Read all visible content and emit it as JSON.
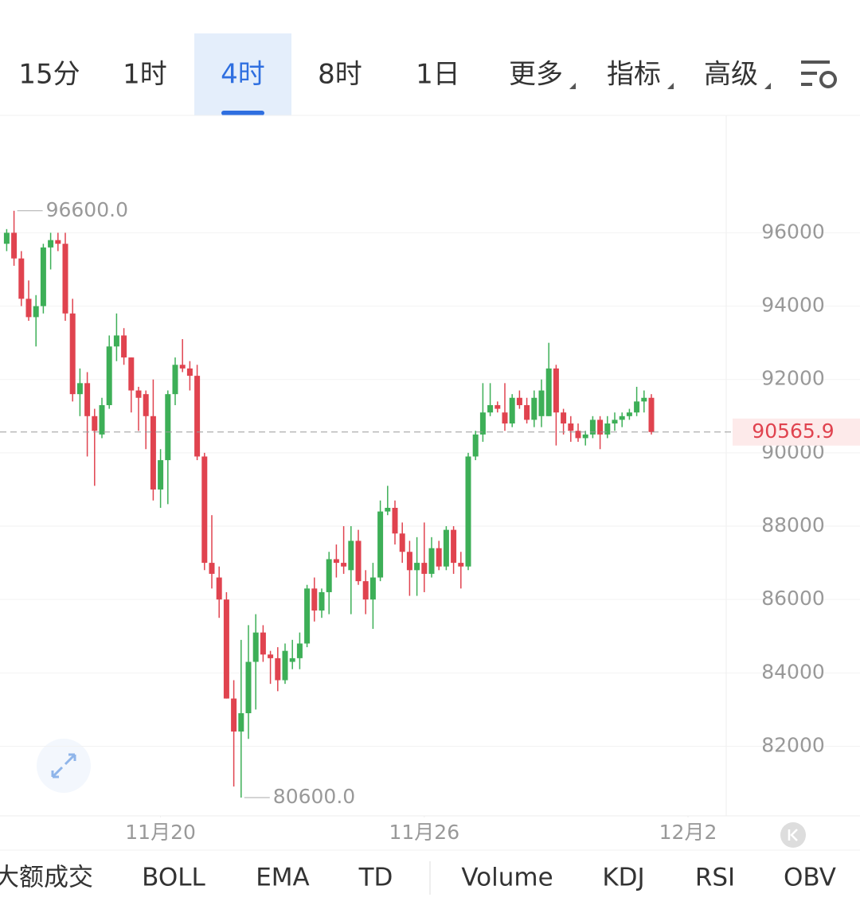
{
  "tabs": [
    {
      "label": "15分"
    },
    {
      "label": "1时"
    },
    {
      "label": "4时",
      "active": true
    },
    {
      "label": "8时"
    },
    {
      "label": "1日"
    },
    {
      "label": "更多",
      "menu": true
    },
    {
      "label": "指标",
      "menu": true
    },
    {
      "label": "高级",
      "menu": true
    }
  ],
  "indicators": [
    "大额成交",
    "BOLL",
    "EMA",
    "TD",
    "Volume",
    "KDJ",
    "RSI",
    "OBV"
  ],
  "chart_data": {
    "type": "candlestick",
    "open": [
      95700,
      96000,
      95300,
      94200,
      93700,
      94000,
      95600,
      95800,
      95700,
      93800,
      91600,
      91900,
      91000,
      90500,
      91300,
      92900,
      93200,
      92600,
      91700,
      91600,
      91000,
      89000,
      89800,
      91600,
      92400,
      92300,
      92100,
      89900,
      87000,
      86600,
      86000,
      83300,
      82400,
      82900,
      84300,
      85100,
      84500,
      84400,
      83800,
      84300,
      84400,
      84800,
      86300,
      85700,
      86200,
      87100,
      87000,
      86800,
      87600,
      86500,
      86000,
      86600,
      88400,
      88500,
      87800,
      87300,
      86800,
      87000,
      86700,
      87400,
      86900,
      87900,
      87000,
      86900,
      89900,
      90500,
      91100,
      91300,
      91100,
      90800,
      91500,
      91300,
      90900,
      91000,
      91000,
      92300,
      91100,
      90800,
      90600,
      90400,
      90500,
      90900,
      90500,
      90800,
      90900,
      91000,
      91100,
      91400,
      91500
    ],
    "high": [
      96100,
      96600,
      95500,
      94700,
      94300,
      95700,
      96000,
      96000,
      96000,
      94200,
      92300,
      92200,
      91200,
      91500,
      93200,
      93800,
      93400,
      92600,
      91800,
      91700,
      92000,
      90100,
      91700,
      92600,
      93100,
      92500,
      92400,
      90000,
      88300,
      86900,
      86200,
      83800,
      84900,
      85300,
      85600,
      85300,
      84600,
      84700,
      84800,
      84900,
      85100,
      86400,
      86600,
      86300,
      87300,
      87500,
      88000,
      88000,
      87900,
      86800,
      87000,
      88700,
      89100,
      88700,
      88100,
      87600,
      87700,
      88100,
      87700,
      87600,
      88000,
      88000,
      87300,
      90000,
      90600,
      91900,
      91900,
      91400,
      91900,
      91600,
      91700,
      91500,
      91700,
      92000,
      93000,
      92400,
      91200,
      91000,
      90800,
      90600,
      91000,
      91000,
      91000,
      91100,
      91100,
      91200,
      91800,
      91700,
      91600
    ],
    "low": [
      95500,
      95100,
      94000,
      93600,
      92900,
      93800,
      95000,
      95500,
      93600,
      91400,
      91000,
      89900,
      89100,
      90400,
      91200,
      92500,
      92400,
      91100,
      90600,
      90100,
      88700,
      88500,
      88600,
      91300,
      92200,
      91700,
      89800,
      86800,
      86300,
      85500,
      83300,
      80900,
      80600,
      82200,
      83000,
      84300,
      83700,
      83500,
      83700,
      84100,
      84100,
      84700,
      85400,
      85500,
      85600,
      86600,
      86700,
      85600,
      86400,
      85600,
      85200,
      86500,
      88300,
      87500,
      87000,
      86100,
      86100,
      86200,
      86600,
      86800,
      86800,
      86700,
      86300,
      86800,
      89800,
      90300,
      91000,
      91100,
      90600,
      90700,
      91200,
      90800,
      90700,
      90700,
      91000,
      90200,
      90500,
      90300,
      90300,
      90200,
      90400,
      90100,
      90400,
      90600,
      90700,
      90900,
      91000,
      91100,
      90500
    ],
    "close": [
      96000,
      95300,
      94200,
      93700,
      94000,
      95600,
      95800,
      95700,
      93800,
      91600,
      91900,
      91000,
      90600,
      91300,
      92900,
      93200,
      92600,
      91700,
      91500,
      91000,
      89000,
      89800,
      91600,
      92400,
      92300,
      92100,
      89900,
      87000,
      86700,
      86000,
      83300,
      82400,
      82900,
      84300,
      85100,
      84500,
      84400,
      83800,
      84600,
      84400,
      84800,
      86300,
      85700,
      86200,
      87100,
      87000,
      86900,
      87600,
      86500,
      86000,
      86600,
      88400,
      88500,
      87800,
      87300,
      86800,
      87000,
      86700,
      87400,
      86900,
      87900,
      87000,
      86900,
      89900,
      90500,
      91100,
      91300,
      91200,
      90800,
      91500,
      91300,
      90900,
      91500,
      91700,
      92300,
      91100,
      90800,
      90600,
      90400,
      90500,
      90900,
      90500,
      90800,
      90900,
      91000,
      91100,
      91400,
      91500,
      90566
    ],
    "up_color": "#3daf57",
    "down_color": "#e0434f",
    "ylim": [
      80100,
      99200
    ],
    "yticks": [
      82000,
      84000,
      86000,
      88000,
      90000,
      92000,
      94000,
      96000
    ],
    "xlim": [
      -1,
      98
    ],
    "xticks": [
      {
        "value": 21,
        "label": "11月20"
      },
      {
        "value": 57,
        "label": "11月26"
      },
      {
        "value": 93,
        "label": "12月2"
      }
    ],
    "grid": true,
    "max_label": {
      "value": 96600,
      "label": "96600.0"
    },
    "min_label": {
      "value": 80600,
      "label": "80600.0"
    },
    "last_price": 90565.9
  }
}
